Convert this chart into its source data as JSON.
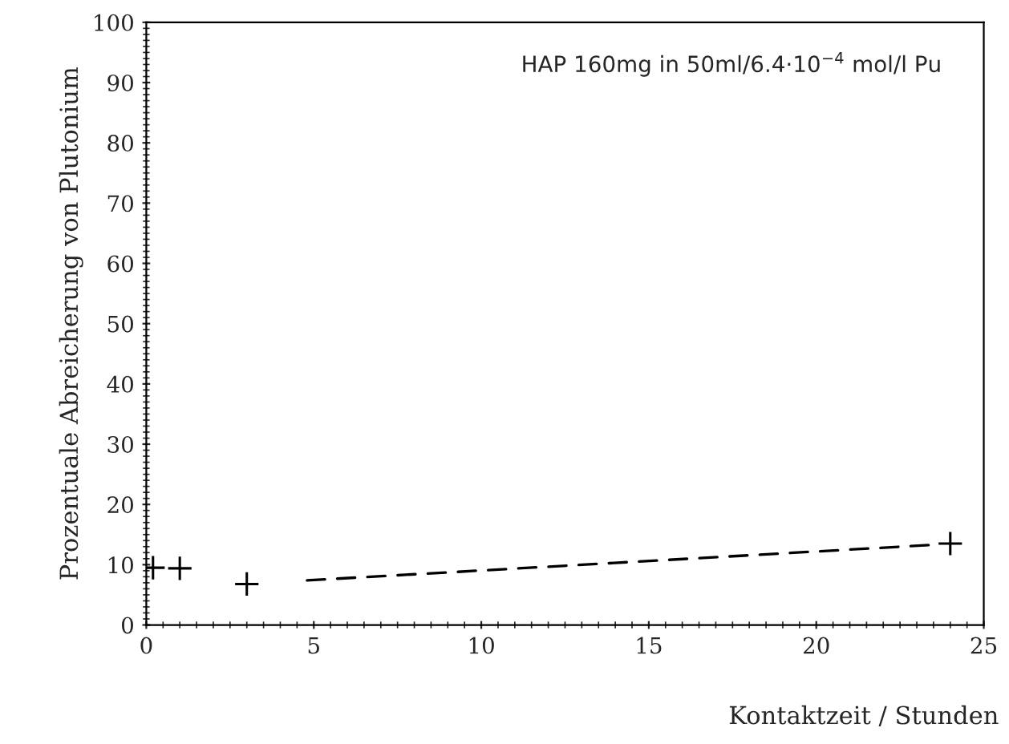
{
  "chart_data": {
    "type": "scatter",
    "xlabel": "Kontaktzeit / Stunden",
    "ylabel": "Prozentuale Abreicherung von Plutonium",
    "annotations": [
      "HAP 160mg in 50ml/6.4·10$^{−4}$ mol/l Pu"
    ],
    "series": [
      {
        "color": "#000000",
        "marker": "cross",
        "x": [
          0.2,
          1,
          3,
          24
        ],
        "values": [
          9.5,
          9.4,
          6.8,
          13.5
        ]
      },
      {
        "type": "line",
        "color": "#000000",
        "marker": "none",
        "line_style": "dashed",
        "x": [
          4.8,
          23.5
        ],
        "values": [
          7.4,
          13.3
        ]
      }
    ],
    "xlim": [
      0,
      25
    ],
    "ylim": [
      0,
      100
    ],
    "xticks": [
      0,
      5,
      10,
      15,
      20,
      25
    ],
    "yticks": [
      0,
      10,
      20,
      30,
      40,
      50,
      60,
      70,
      80,
      90,
      100
    ],
    "grid": false
  }
}
